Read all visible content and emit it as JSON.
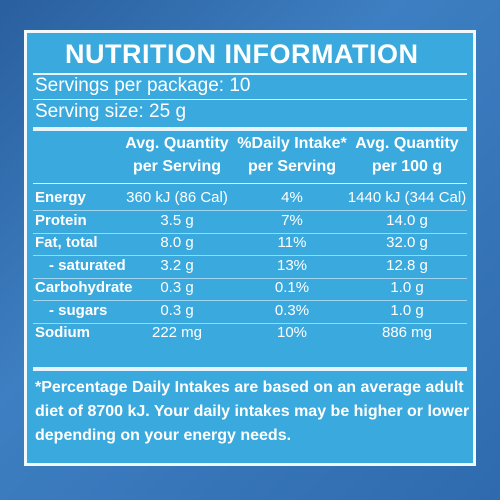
{
  "title": "NUTRITION INFORMATION",
  "servings_per_package": "Servings per package: 10",
  "serving_size": "Serving size: 25 g",
  "table": {
    "columns": [
      [
        "Avg. Quantity",
        "per Serving"
      ],
      [
        "%Daily Intake*",
        "per Serving"
      ],
      [
        "Avg. Quantity",
        "per 100 g"
      ]
    ],
    "rows": [
      [
        "Energy",
        "360 kJ (86 Cal)",
        "4%",
        "1440 kJ (344 Cal)"
      ],
      [
        "Protein",
        "3.5 g",
        "7%",
        "14.0 g"
      ],
      [
        "Fat, total",
        "8.0 g",
        "11%",
        "32.0 g"
      ],
      [
        "- saturated",
        "3.2 g",
        "13%",
        "12.8 g"
      ],
      [
        "Carbohydrate",
        "0.3 g",
        "0.1%",
        "1.0 g"
      ],
      [
        "- sugars",
        "0.3 g",
        "0.3%",
        "1.0 g"
      ],
      [
        "Sodium",
        "222 mg",
        "10%",
        "886 mg"
      ]
    ]
  },
  "footnote": [
    "*Percentage Daily Intakes are based on an average adult",
    "diet of 8700 kJ. Your daily intakes may be higher or lower",
    "depending on your energy needs."
  ]
}
